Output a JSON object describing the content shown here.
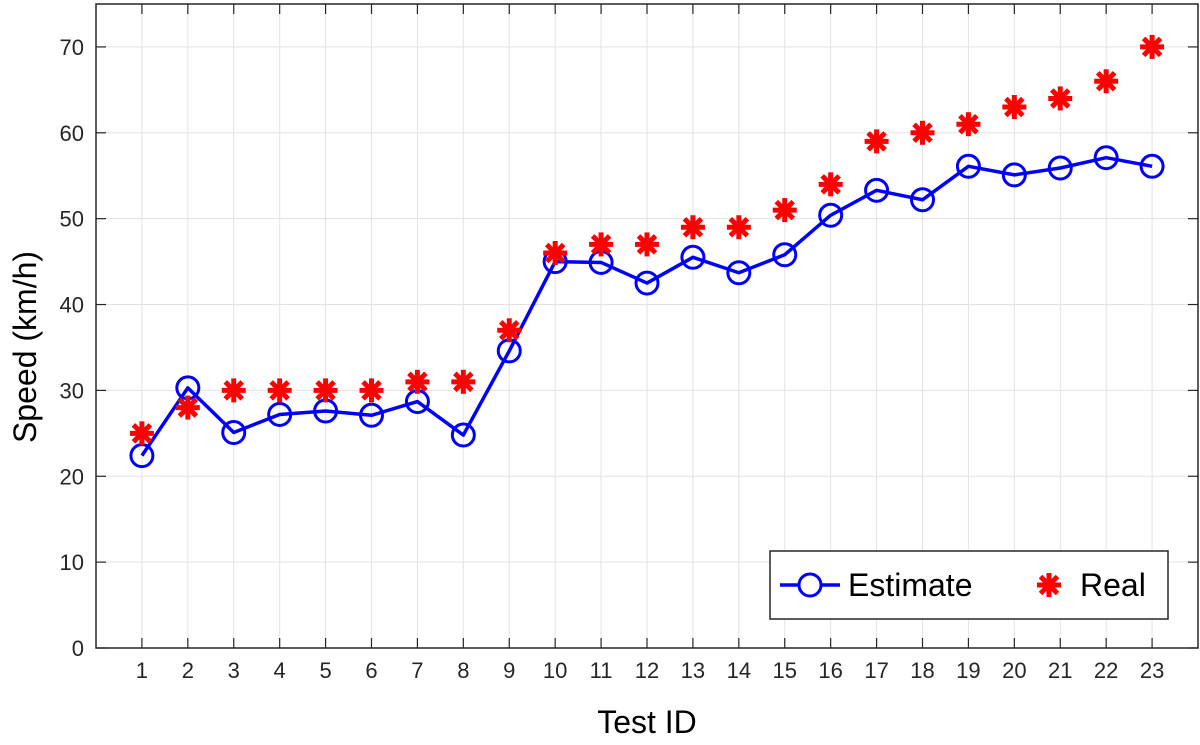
{
  "chart_data": {
    "type": "line",
    "title": "",
    "xlabel": "Test ID",
    "ylabel": "Speed (km/h)",
    "x": [
      1,
      2,
      3,
      4,
      5,
      6,
      7,
      8,
      9,
      10,
      11,
      12,
      13,
      14,
      15,
      16,
      17,
      18,
      19,
      20,
      21,
      22,
      23
    ],
    "xlim": [
      0,
      24
    ],
    "ylim": [
      0,
      75
    ],
    "yticks": [
      0,
      10,
      20,
      30,
      40,
      50,
      60,
      70
    ],
    "grid": true,
    "legend_position": "bottom-right",
    "series": [
      {
        "name": "Estimate",
        "style": "line-with-circle-markers",
        "color": "#0000ff",
        "values": [
          22.4,
          30.3,
          25.1,
          27.2,
          27.6,
          27.1,
          28.7,
          24.8,
          34.6,
          45.0,
          44.9,
          42.5,
          45.5,
          43.7,
          45.8,
          50.4,
          53.3,
          52.2,
          56.1,
          55.1,
          55.9,
          57.1,
          56.1
        ]
      },
      {
        "name": "Real",
        "style": "asterisk-markers",
        "color": "#ff0000",
        "values": [
          25,
          28,
          30,
          30,
          30,
          30,
          31,
          31,
          37,
          46,
          47,
          47,
          49,
          49,
          51,
          54,
          59,
          60,
          61,
          63,
          64,
          66,
          70
        ]
      }
    ]
  }
}
